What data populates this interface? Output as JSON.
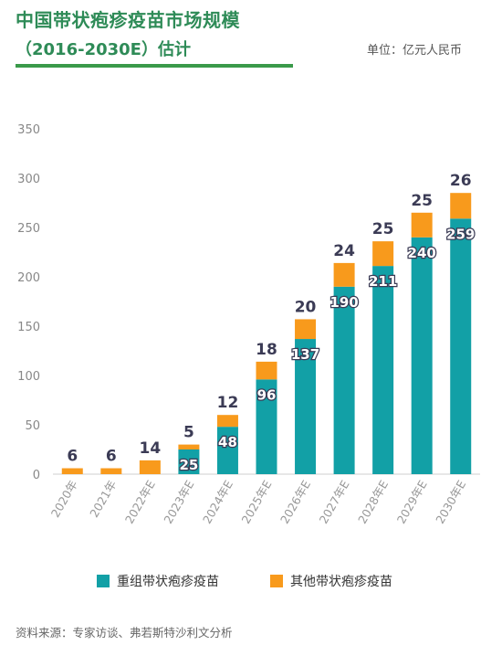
{
  "header": {
    "title": "中国带状疱疹疫苗市场规模",
    "subtitle": "（2016-2030E）估计",
    "unit": "单位：亿元人民币"
  },
  "colors": {
    "title": "#2e8b57",
    "recombinant": "#12a0a6",
    "other": "#f89a1c"
  },
  "chart_data": {
    "type": "bar",
    "stacked": true,
    "categories": [
      "2020年",
      "2021年",
      "2022年E",
      "2023年E",
      "2024年E",
      "2025年E",
      "2026年E",
      "2027年E",
      "2028年E",
      "2029年E",
      "2030年E"
    ],
    "series": [
      {
        "name": "重组带状疱疹疫苗",
        "color": "#12a0a6",
        "values": [
          0,
          0,
          0,
          25,
          48,
          96,
          137,
          190,
          211,
          240,
          259
        ],
        "labels": [
          "",
          "",
          "",
          "25",
          "48",
          "96",
          "137",
          "190",
          "211",
          "240",
          "259"
        ]
      },
      {
        "name": "其他带状疱疹疫苗",
        "color": "#f89a1c",
        "values": [
          6,
          6,
          14,
          5,
          12,
          18,
          20,
          24,
          25,
          25,
          26
        ],
        "labels": [
          "6",
          "6",
          "14",
          "5",
          "12",
          "18",
          "20",
          "24",
          "25",
          "25",
          "26"
        ]
      }
    ],
    "ylim": [
      0,
      350
    ],
    "yticks": [
      "0",
      "50",
      "100",
      "150",
      "200",
      "250",
      "300",
      "350"
    ],
    "legend_position": "bottom"
  },
  "source": "资料来源：专家访谈、弗若斯特沙利文分析"
}
